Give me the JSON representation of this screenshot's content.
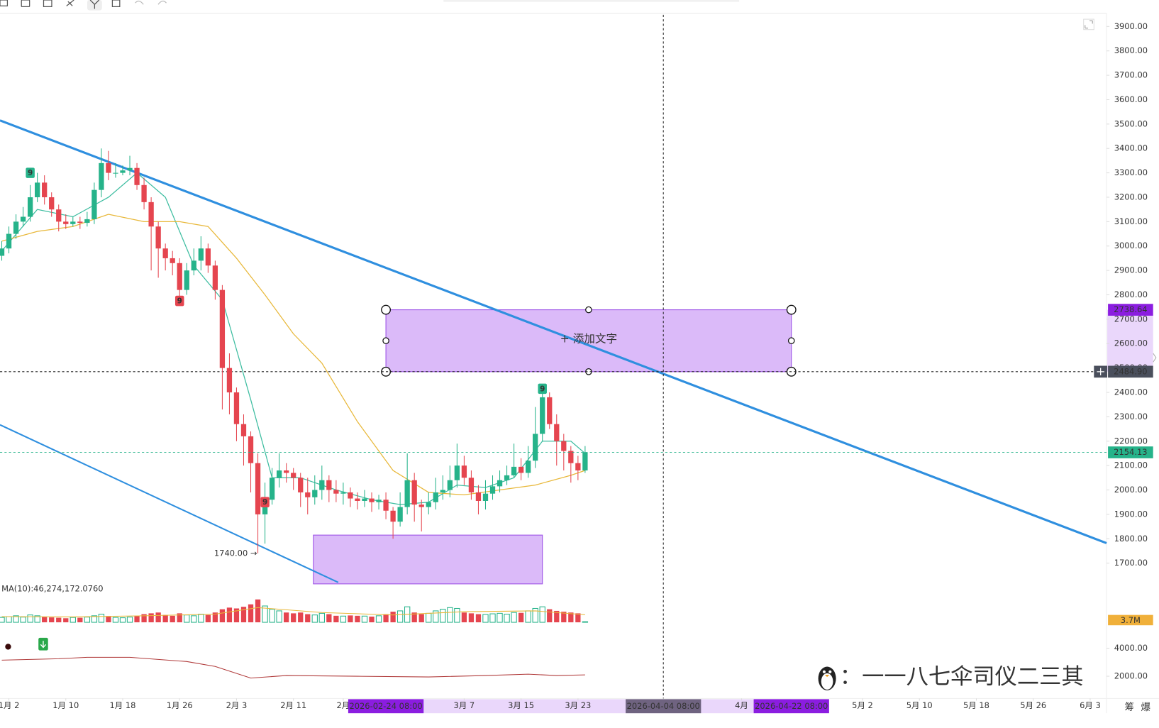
{
  "chart_data": {
    "type": "candlestick",
    "xlim": [
      -0.25,
      155.3
    ],
    "xticks": [
      {
        "value": 1,
        "label": "1月 2"
      },
      {
        "value": 9,
        "label": "1月 10"
      },
      {
        "value": 17,
        "label": "1月 18"
      },
      {
        "value": 25,
        "label": "1月 26"
      },
      {
        "value": 33,
        "label": "2月 3"
      },
      {
        "value": 41,
        "label": "2月 11"
      },
      {
        "value": 48,
        "label": "2月"
      },
      {
        "value": 65,
        "label": "3月 7"
      },
      {
        "value": 73,
        "label": "3月 15"
      },
      {
        "value": 81,
        "label": "3月 23"
      },
      {
        "value": 104,
        "label": "4月"
      },
      {
        "value": 121,
        "label": "5月 2"
      },
      {
        "value": 129,
        "label": "5月 10"
      },
      {
        "value": 137,
        "label": "5月 18"
      },
      {
        "value": 145,
        "label": "5月 26"
      },
      {
        "value": 153,
        "label": "6月 3"
      }
    ],
    "ylim": [
      1615,
      3948
    ],
    "yticks": [
      {
        "value": 1700,
        "label": "1700.00"
      },
      {
        "value": 1800,
        "label": "1800.00"
      },
      {
        "value": 1900,
        "label": "1900.00"
      },
      {
        "value": 2000,
        "label": "2000.00"
      },
      {
        "value": 2100,
        "label": "2100.00"
      },
      {
        "value": 2200,
        "label": "2200.00"
      },
      {
        "value": 2300,
        "label": "2300.00"
      },
      {
        "value": 2400,
        "label": "2400.00"
      },
      {
        "value": 2500,
        "label": "2500.00"
      },
      {
        "value": 2600,
        "label": "2600.00"
      },
      {
        "value": 2700,
        "label": "2700.00"
      },
      {
        "value": 2800,
        "label": "2800.00"
      },
      {
        "value": 2900,
        "label": "2900.00"
      },
      {
        "value": 3000,
        "label": "3000.00"
      },
      {
        "value": 3100,
        "label": "3100.00"
      },
      {
        "value": 3200,
        "label": "3200.00"
      },
      {
        "value": 3300,
        "label": "3300.00"
      },
      {
        "value": 3400,
        "label": "3400.00"
      },
      {
        "value": 3500,
        "label": "3500.00"
      },
      {
        "value": 3600,
        "label": "3600.00"
      },
      {
        "value": 3700,
        "label": "3700.00"
      },
      {
        "value": 3800,
        "label": "3800.00"
      },
      {
        "value": 3900,
        "label": "3900.00"
      }
    ],
    "colors": {
      "up": "#26b38a",
      "down": "#e5454f"
    },
    "open": [
      2960,
      2990,
      3050,
      3100,
      3120,
      3200,
      3260,
      3200,
      3150,
      3100,
      3090,
      3100,
      3095,
      3110,
      3230,
      3340,
      3300,
      3300,
      3310,
      3320,
      3250,
      3180,
      3080,
      2990,
      2950,
      2930,
      2820,
      2900,
      2940,
      2990,
      2920,
      2820,
      2500,
      2400,
      2270,
      2220,
      2110,
      1900,
      1960,
      2050,
      2080,
      2070,
      2050,
      1990,
      1970,
      2000,
      2040,
      2000,
      1985,
      1990,
      1965,
      1955,
      1965,
      1950,
      1960,
      1915,
      1870,
      1930,
      2040,
      1940,
      1930,
      1950,
      1990,
      2000,
      2040,
      2100,
      2050,
      1990,
      1955,
      1985,
      2015,
      2040,
      2060,
      2095,
      2070,
      2120,
      2230,
      2380,
      2270,
      2200,
      2160,
      2110,
      2080
    ],
    "high": [
      3020,
      3080,
      3130,
      3160,
      3250,
      3300,
      3290,
      3220,
      3170,
      3130,
      3120,
      3120,
      3140,
      3260,
      3400,
      3390,
      3340,
      3330,
      3370,
      3340,
      3280,
      3200,
      3100,
      3010,
      2980,
      2950,
      2930,
      2990,
      3040,
      3010,
      2940,
      2840,
      2560,
      2420,
      2310,
      2240,
      2150,
      2030,
      2090,
      2150,
      2110,
      2090,
      2070,
      2050,
      2060,
      2100,
      2060,
      2040,
      2030,
      2010,
      1990,
      2000,
      1990,
      1980,
      1990,
      1930,
      1990,
      2150,
      2070,
      1960,
      1990,
      2050,
      2060,
      2100,
      2190,
      2140,
      2080,
      2020,
      2040,
      2060,
      2080,
      2100,
      2190,
      2130,
      2180,
      2340,
      2400,
      2400,
      2310,
      2230,
      2180,
      2140,
      2180
    ],
    "low": [
      2940,
      2970,
      3030,
      3080,
      3100,
      3180,
      3170,
      3120,
      3060,
      3070,
      3080,
      3070,
      3080,
      3090,
      3200,
      3270,
      3280,
      3290,
      3290,
      3230,
      3150,
      2900,
      2870,
      2900,
      2880,
      2790,
      2800,
      2880,
      2900,
      2890,
      2780,
      2330,
      2310,
      2200,
      2100,
      1990,
      1740,
      1780,
      1940,
      2010,
      2030,
      2000,
      1930,
      1900,
      1940,
      1960,
      1950,
      1950,
      1940,
      1930,
      1920,
      1930,
      1910,
      1920,
      1880,
      1800,
      1850,
      1900,
      1870,
      1830,
      1900,
      1920,
      1960,
      1970,
      2010,
      2020,
      1960,
      1900,
      1920,
      1960,
      1990,
      2020,
      2050,
      2040,
      2050,
      2090,
      2200,
      2250,
      2100,
      2080,
      2030,
      2040,
      2070
    ],
    "close": [
      2990,
      3050,
      3100,
      3120,
      3200,
      3260,
      3200,
      3150,
      3100,
      3090,
      3100,
      3095,
      3110,
      3230,
      3340,
      3300,
      3300,
      3310,
      3320,
      3250,
      3180,
      3080,
      2990,
      2950,
      2930,
      2820,
      2900,
      2940,
      2990,
      2920,
      2820,
      2500,
      2400,
      2270,
      2220,
      2110,
      1900,
      1960,
      2050,
      2080,
      2070,
      2050,
      1990,
      1970,
      2000,
      2040,
      2000,
      1985,
      1990,
      1965,
      1955,
      1965,
      1950,
      1960,
      1915,
      1870,
      1930,
      2040,
      1940,
      1930,
      1950,
      1990,
      2000,
      2040,
      2100,
      2050,
      1990,
      1955,
      1985,
      2015,
      2040,
      2060,
      2095,
      2070,
      2120,
      2230,
      2380,
      2270,
      2200,
      2160,
      2110,
      2080,
      2154.13
    ],
    "ma": [
      {
        "color": "#3dbda0",
        "x": [
          0,
          5,
          10,
          15,
          19,
          23,
          27,
          31,
          35,
          38,
          42,
          47,
          52,
          56,
          60,
          64,
          68,
          72,
          76,
          80,
          82
        ],
        "values": [
          2980,
          3150,
          3120,
          3200,
          3300,
          3200,
          2920,
          2780,
          2370,
          2050,
          2050,
          2000,
          1960,
          1940,
          1950,
          2020,
          2010,
          2050,
          2200,
          2200,
          2150
        ]
      },
      {
        "color": "#e8b83a",
        "x": [
          0,
          5,
          10,
          15,
          20,
          25,
          29,
          33,
          37,
          41,
          45,
          50,
          55,
          60,
          65,
          70,
          75,
          80,
          82
        ],
        "values": [
          3020,
          3060,
          3080,
          3130,
          3100,
          3100,
          3080,
          2950,
          2800,
          2640,
          2520,
          2280,
          2080,
          1990,
          1980,
          2000,
          2020,
          2060,
          2080
        ]
      }
    ],
    "trendlines": [
      {
        "color": "#2f8fdf",
        "width": 3,
        "x": [
          -0.25,
          155.3
        ],
        "y": [
          3515,
          1782
        ]
      },
      {
        "color": "#2f8fdf",
        "width": 2,
        "x": [
          -0.25,
          47.3
        ],
        "y": [
          2267,
          1621
        ]
      }
    ],
    "boxes": [
      {
        "x": [
          54,
          111
        ],
        "y": [
          2484.9,
          2738.64
        ],
        "label": "+ 添加文字",
        "handles": true
      },
      {
        "x": [
          43.8,
          76
        ],
        "y": [
          1615,
          1815
        ],
        "handles": false
      }
    ],
    "crosshair": {
      "x": 93,
      "y": 2484.9
    },
    "date_labels": [
      {
        "value": 54,
        "label": "2026-02-24 08:00",
        "color": "#8b1de0"
      },
      {
        "value": 93,
        "label": "2026-04-04 08:00",
        "color": "#6f6380"
      },
      {
        "value": 111,
        "label": "2026-04-22 08:00",
        "color": "#8b1de0"
      }
    ],
    "price_labels": [
      {
        "value": 2738.64,
        "label": "2738.64",
        "color": "#8b1de0"
      },
      {
        "value": 2484.9,
        "label": "2484.90",
        "color": "#4a4f5c"
      },
      {
        "value": 2154.13,
        "label": "2154.13",
        "color": "#26b38a"
      }
    ],
    "signals": [
      {
        "x": 4,
        "y": 3300,
        "text": "9",
        "color": "#26b38a"
      },
      {
        "x": 25,
        "y": 2775,
        "text": "9",
        "color": "#e5454f"
      },
      {
        "x": 37,
        "y": 1950,
        "text": "9",
        "color": "#e5454f"
      },
      {
        "x": 76,
        "y": 2415,
        "text": "9",
        "color": "#26b38a"
      }
    ],
    "low_note": {
      "x": 36,
      "y": 1740,
      "text": "1740.00 →"
    },
    "volume": {
      "ylim": [
        0,
        190
      ],
      "values": [
        30,
        35,
        40,
        32,
        45,
        40,
        35,
        30,
        28,
        25,
        30,
        28,
        32,
        40,
        50,
        38,
        30,
        28,
        32,
        40,
        50,
        55,
        60,
        45,
        40,
        55,
        45,
        40,
        50,
        45,
        60,
        80,
        90,
        85,
        95,
        110,
        140,
        100,
        80,
        70,
        60,
        55,
        60,
        50,
        45,
        55,
        50,
        40,
        38,
        42,
        40,
        38,
        35,
        40,
        50,
        65,
        70,
        95,
        60,
        50,
        55,
        70,
        80,
        90,
        85,
        60,
        55,
        50,
        48,
        52,
        55,
        50,
        60,
        58,
        70,
        85,
        95,
        80,
        70,
        65,
        60,
        55,
        3.7
      ],
      "last_label": "3.7M",
      "ma_label": "MA(10):46,274,172.0760",
      "ma": {
        "color": "#e8b83a",
        "x": [
          0,
          10,
          20,
          30,
          36,
          45,
          55,
          65,
          75,
          82
        ],
        "values": [
          35,
          33,
          40,
          50,
          90,
          60,
          45,
          65,
          70,
          46.27
        ]
      }
    },
    "indicator": {
      "ylim": [
        680,
        4900
      ],
      "yticks": [
        {
          "value": 2000,
          "label": "2000.00"
        },
        {
          "value": 4000,
          "label": "4000.00"
        }
      ],
      "color": "#b03a3a",
      "x": [
        0,
        8,
        12,
        18,
        22,
        26,
        30,
        35,
        40,
        50,
        60,
        68,
        74,
        78,
        82
      ],
      "values": [
        3150,
        3250,
        3350,
        3350,
        3200,
        3050,
        2700,
        1870,
        2050,
        2000,
        1950,
        2050,
        2150,
        2050,
        2100
      ]
    },
    "watermark": "：一一八七伞司仪二三其",
    "side_buttons": [
      "筹",
      "爆"
    ]
  }
}
